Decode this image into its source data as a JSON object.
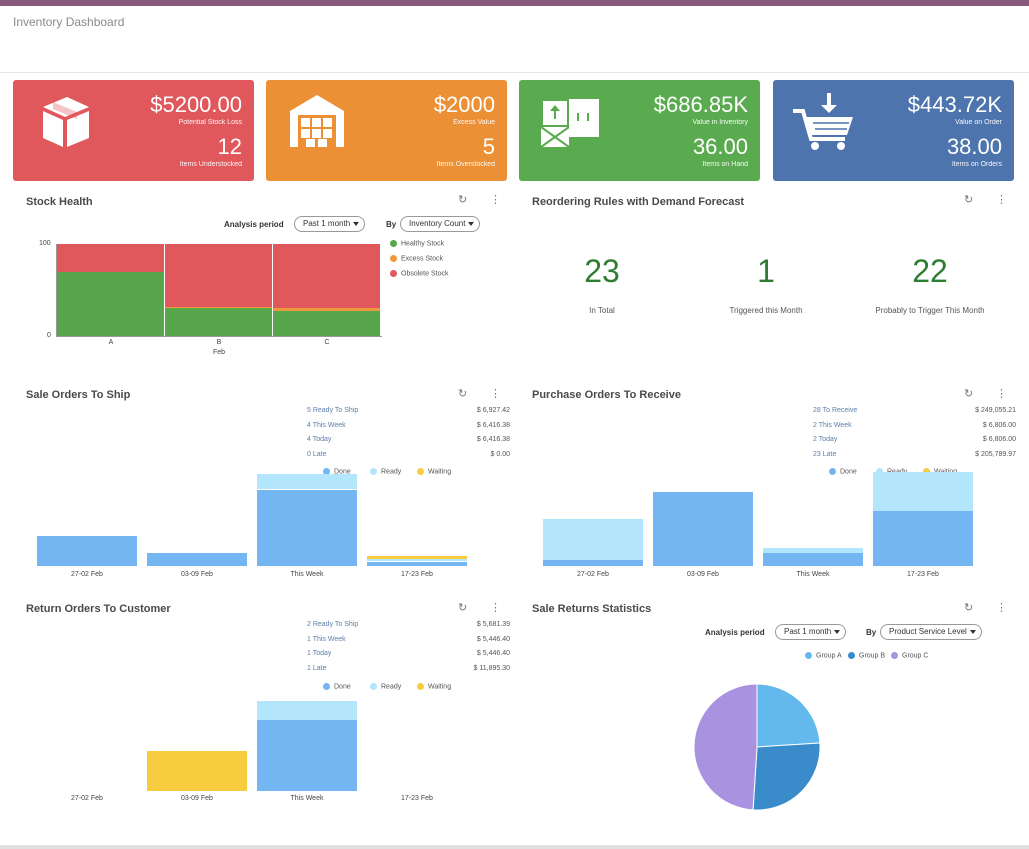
{
  "page": {
    "title": "Inventory Dashboard"
  },
  "kpis": [
    {
      "color": "#e0575c",
      "icon": "box-icon",
      "value1": "$5200.00",
      "label1": "Potential Stock Loss",
      "value2": "12",
      "label2": "Items Understocked"
    },
    {
      "color": "#ec9035",
      "icon": "warehouse-icon",
      "value1": "$2000",
      "label1": "Excess Value",
      "value2": "5",
      "label2": "Items Overstocked"
    },
    {
      "color": "#5aab4f",
      "icon": "packages-icon",
      "value1": "$686.85K",
      "label1": "Value in Inventory",
      "value2": "36.00",
      "label2": "Items on Hand"
    },
    {
      "color": "#4d74ad",
      "icon": "cart-icon",
      "value1": "$443.72K",
      "label1": "Value on Order",
      "value2": "38.00",
      "label2": "Items on Orders"
    }
  ],
  "stock_health": {
    "title": "Stock Health",
    "analysis_label": "Analysis period",
    "analysis_value": "Past 1 month",
    "by_label": "By",
    "by_value": "Inventory Count",
    "chart_data": {
      "type": "bar",
      "stacked": true,
      "categories": [
        "A",
        "B",
        "C"
      ],
      "xlabel": "Feb",
      "ylim": [
        0,
        100
      ],
      "yticks": [
        "0",
        "100"
      ],
      "series": [
        {
          "name": "Healthy Stock",
          "color": "#58a64b",
          "values": [
            70,
            30,
            27
          ]
        },
        {
          "name": "Excess Stock",
          "color": "#ec9a3c",
          "values": [
            0,
            2,
            3
          ]
        },
        {
          "name": "Obsolete Stock",
          "color": "#e0575c",
          "values": [
            30,
            68,
            70
          ]
        }
      ]
    }
  },
  "reordering": {
    "title": "Reordering Rules with Demand Forecast",
    "stats": [
      {
        "value": "23",
        "label": "In Total"
      },
      {
        "value": "1",
        "label": "Triggered this Month"
      },
      {
        "value": "22",
        "label": "Probably to Trigger This Month"
      }
    ]
  },
  "sale_orders": {
    "title": "Sale Orders To Ship",
    "stats": [
      {
        "label": "5 Ready To Ship",
        "value": "$ 6,927.42"
      },
      {
        "label": "4 This Week",
        "value": "$ 6,416.38"
      },
      {
        "label": "4 Today",
        "value": "$ 6,416.38"
      },
      {
        "label": "0 Late",
        "value": "$ 0.00"
      }
    ],
    "chart_data": {
      "type": "bar",
      "stacked": true,
      "categories": [
        "27-02 Feb",
        "03-09 Feb",
        "This Week",
        "17-23 Feb"
      ],
      "ymax": 100,
      "series": [
        {
          "name": "Done",
          "color": "#74b6f2",
          "values": [
            33,
            14,
            85,
            5
          ]
        },
        {
          "name": "Ready",
          "color": "#b3e5fc",
          "values": [
            0,
            0,
            17,
            3
          ]
        },
        {
          "name": "Waiting",
          "color": "#f7cc3e",
          "values": [
            0,
            0,
            0,
            3
          ]
        }
      ]
    }
  },
  "purchase_orders": {
    "title": "Purchase Orders To Receive",
    "stats": [
      {
        "label": "28 To Receive",
        "value": "$ 249,055.21"
      },
      {
        "label": "2 This Week",
        "value": "$ 6,806.00"
      },
      {
        "label": "2 Today",
        "value": "$ 6,806.00"
      },
      {
        "label": "23 Late",
        "value": "$ 205,789.97"
      }
    ],
    "chart_data": {
      "type": "bar",
      "stacked": true,
      "categories": [
        "27-02 Feb",
        "03-09 Feb",
        "This Week",
        "17-23 Feb"
      ],
      "ymax": 100,
      "series": [
        {
          "name": "Done",
          "color": "#74b6f2",
          "values": [
            7,
            82,
            15,
            61
          ]
        },
        {
          "name": "Ready",
          "color": "#b3e5fc",
          "values": [
            45,
            0,
            5,
            44
          ]
        },
        {
          "name": "Waiting",
          "color": "#f7cc3e",
          "values": [
            0,
            0,
            0,
            0
          ]
        }
      ]
    }
  },
  "return_orders": {
    "title": "Return Orders To Customer",
    "stats": [
      {
        "label": "2 Ready To Ship",
        "value": "$ 5,681.39"
      },
      {
        "label": "1 This Week",
        "value": "$ 5,446.40"
      },
      {
        "label": "1 Today",
        "value": "$ 5,446.40"
      },
      {
        "label": "1 Late",
        "value": "$ 11,895.30"
      }
    ],
    "chart_data": {
      "type": "bar",
      "stacked": true,
      "categories": [
        "27-02 Feb",
        "03-09 Feb",
        "This Week",
        "17-23 Feb"
      ],
      "ymax": 100,
      "series": [
        {
          "name": "Done",
          "color": "#74b6f2",
          "values": [
            0,
            0,
            79,
            0
          ]
        },
        {
          "name": "Ready",
          "color": "#b3e5fc",
          "values": [
            0,
            0,
            21,
            0
          ]
        },
        {
          "name": "Waiting",
          "color": "#f7cc3e",
          "values": [
            0,
            44,
            0,
            0
          ]
        }
      ]
    }
  },
  "sale_returns": {
    "title": "Sale Returns Statistics",
    "analysis_label": "Analysis period",
    "analysis_value": "Past 1 month",
    "by_label": "By",
    "by_value": "Product Service Level",
    "chart_data": {
      "type": "pie",
      "slices": [
        {
          "name": "Group A",
          "color": "#64b9ec",
          "value": 24
        },
        {
          "name": "Group B",
          "color": "#3a8bc9",
          "value": 27
        },
        {
          "name": "Group C",
          "color": "#a992df",
          "value": 49
        }
      ]
    }
  },
  "icons": {
    "refresh": "↻",
    "more": "⋮"
  }
}
